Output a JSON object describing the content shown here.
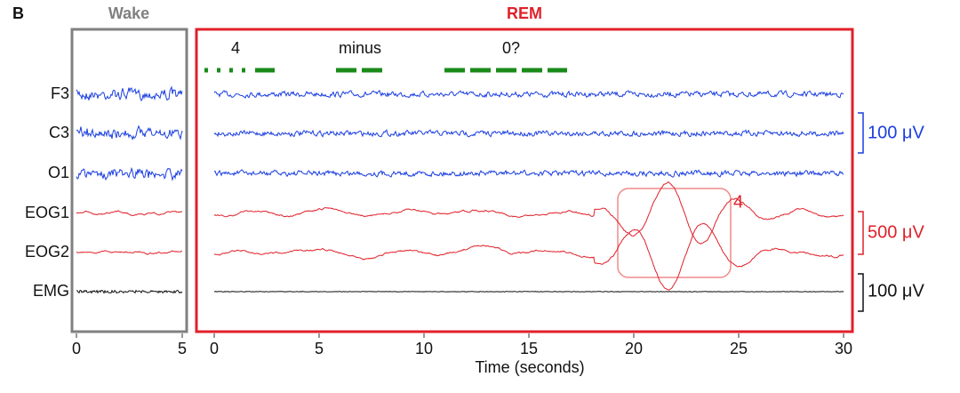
{
  "panel_label": "B",
  "wake": {
    "title": "Wake",
    "color": "#808080",
    "xlim": [
      0,
      5
    ],
    "xticks": [
      0,
      5
    ]
  },
  "rem": {
    "title": "REM",
    "color": "#e0202a",
    "xlim": [
      0,
      30
    ],
    "xticks": [
      0,
      5,
      10,
      15,
      20,
      25,
      30
    ],
    "annotations": [
      "4",
      "minus",
      "0?"
    ],
    "highlight_label": "4"
  },
  "channels": [
    "F3",
    "C3",
    "O1",
    "EOG1",
    "EOG2",
    "EMG"
  ],
  "scale_bars": [
    {
      "label": "100 μV",
      "color": "#1a3ee0"
    },
    {
      "label": "500 μV",
      "color": "#e0202a"
    },
    {
      "label": "100 μV",
      "color": "#111111"
    }
  ],
  "x_label": "Time (seconds)"
}
